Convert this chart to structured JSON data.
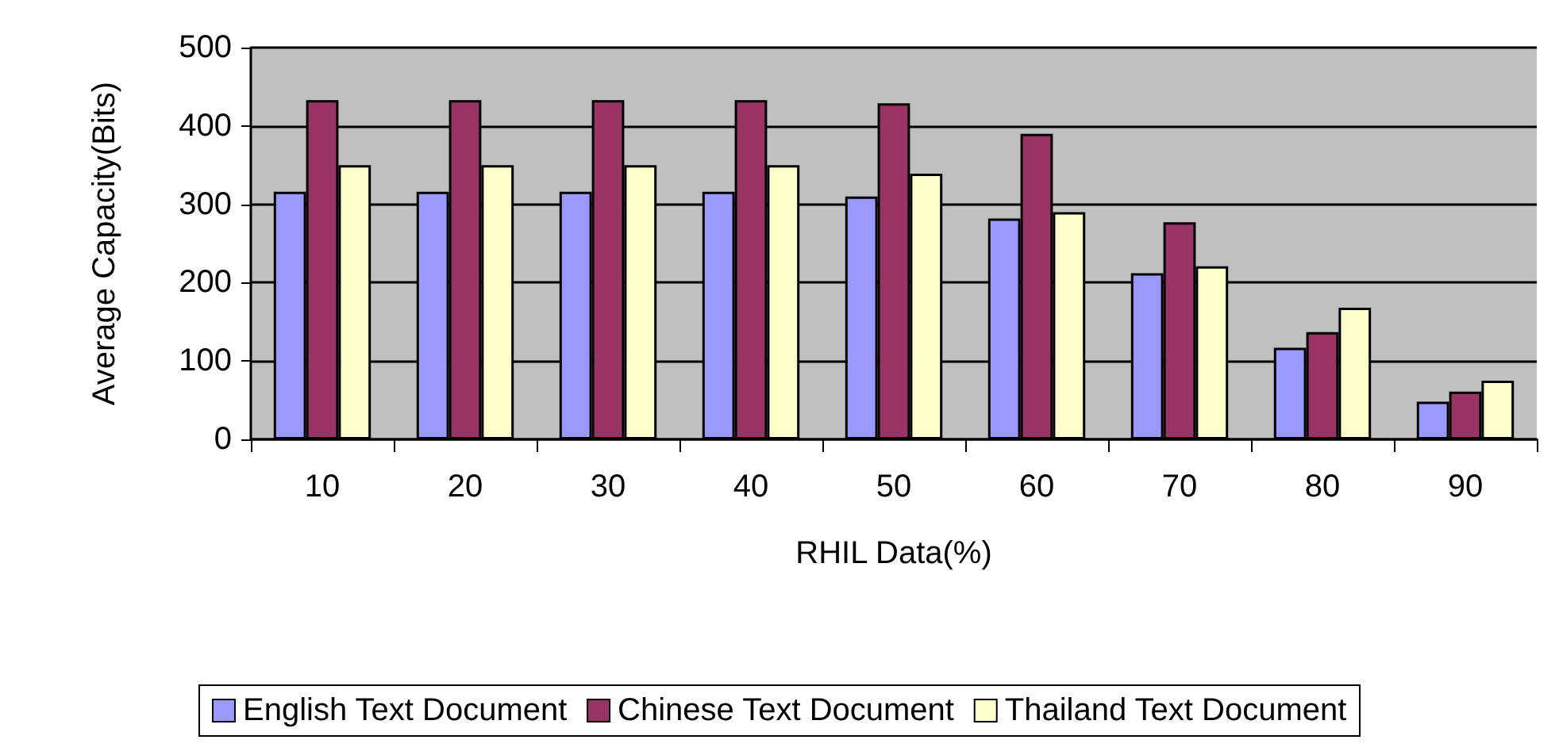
{
  "chart_data": {
    "type": "bar",
    "xlabel": "RHIL Data(%)",
    "ylabel": "Average Capacity(Bits)",
    "categories": [
      "10",
      "20",
      "30",
      "40",
      "50",
      "60",
      "70",
      "80",
      "90"
    ],
    "series": [
      {
        "name": "English Text Document",
        "color": "#9999ff",
        "values": [
          316,
          316,
          316,
          316,
          310,
          282,
          212,
          117,
          48
        ]
      },
      {
        "name": "Chinese Text Document",
        "color": "#993366",
        "values": [
          433,
          433,
          433,
          433,
          429,
          390,
          277,
          137,
          61
        ]
      },
      {
        "name": "Thailand Text Document",
        "color": "#ffffcc",
        "values": [
          350,
          350,
          350,
          350,
          339,
          290,
          221,
          168,
          75
        ]
      }
    ],
    "ylim": [
      0,
      500
    ],
    "yticks": [
      0,
      100,
      200,
      300,
      400,
      500
    ],
    "grid": "y",
    "legend": "bottom"
  }
}
